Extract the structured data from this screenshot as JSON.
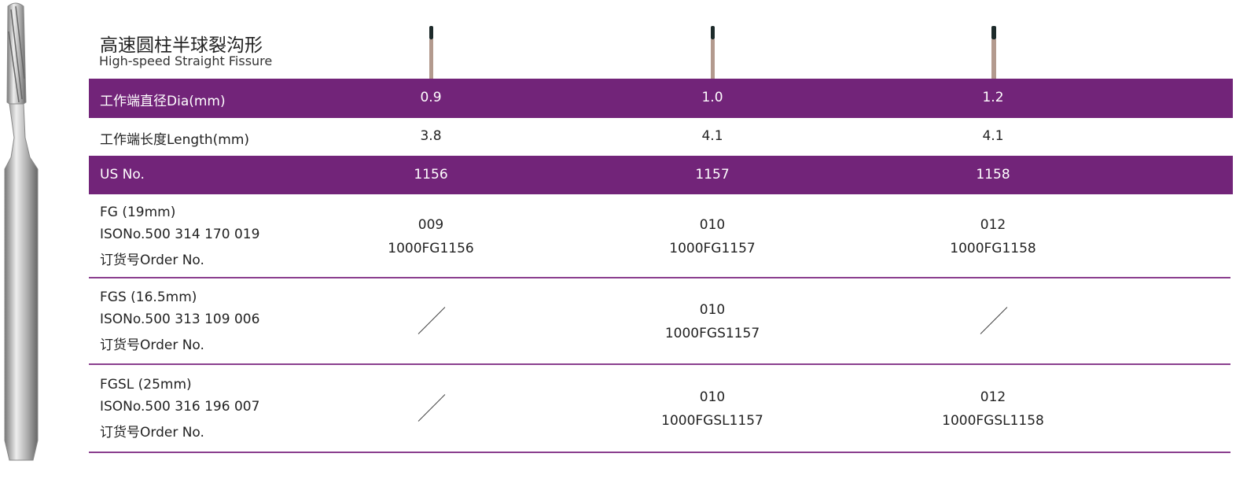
{
  "header": {
    "title_cn": "高速圆柱半球裂沟形",
    "title_en": "High-speed Straight Fissure"
  },
  "table": {
    "rows": [
      {
        "label": "工作端直径Dia(mm)",
        "cells": [
          "0.9",
          "1.0",
          "1.2"
        ]
      },
      {
        "label": "工作端长度Length(mm)",
        "cells": [
          "3.8",
          "4.1",
          "4.1"
        ]
      },
      {
        "label": "US No.",
        "cells": [
          "1156",
          "1157",
          "1158"
        ]
      }
    ],
    "blocks": [
      {
        "label": [
          "FG (19mm)",
          "ISONo.500 314 170 019",
          "订货号Order No."
        ],
        "cells": [
          [
            "009",
            "1000FG1156"
          ],
          [
            "010",
            "1000FG1157"
          ],
          [
            "012",
            "1000FG1158"
          ]
        ]
      },
      {
        "label": [
          "FGS (16.5mm)",
          "ISONo.500 313 109 006",
          "订货号Order No."
        ],
        "cells": [
          null,
          [
            "010",
            "1000FGS1157"
          ],
          null
        ]
      },
      {
        "label": [
          "FGSL (25mm)",
          "ISONo.500 316 196 007",
          "订货号Order No."
        ],
        "cells": [
          null,
          [
            "010",
            "1000FGSL1157"
          ],
          [
            "012",
            "1000FGSL1158"
          ]
        ]
      }
    ]
  }
}
